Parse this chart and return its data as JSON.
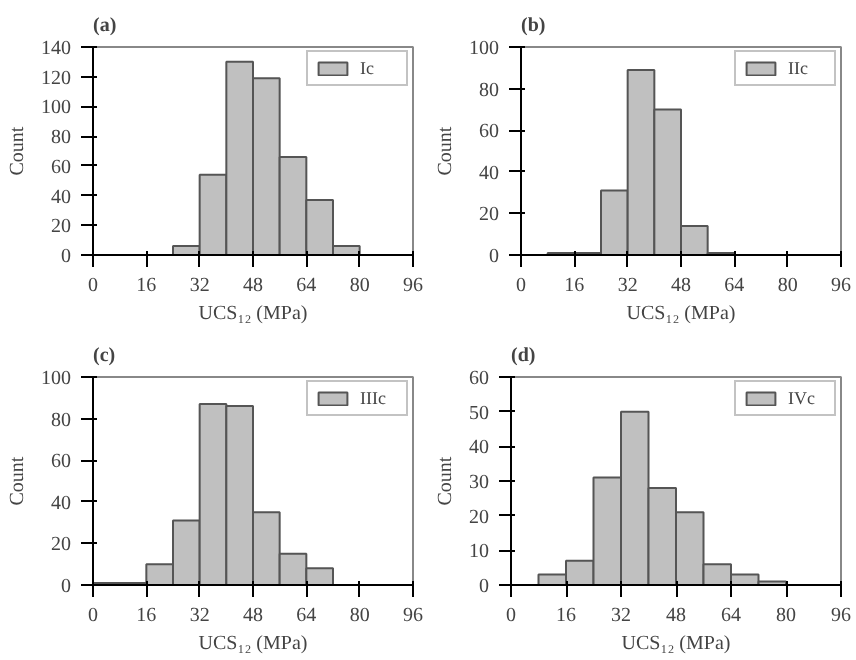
{
  "chart_data": [
    {
      "type": "histogram",
      "title": "(a)",
      "xlabel": "UCS₁₂ (MPa)",
      "ylabel": "Count",
      "bins": [
        24,
        32,
        40,
        48,
        56,
        64,
        72,
        80
      ],
      "series": [
        {
          "name": "Ic",
          "color": "#c0c0c0",
          "values": [
            6,
            54,
            130,
            119,
            66,
            37,
            6
          ]
        }
      ],
      "xlim": [
        0,
        96
      ],
      "xticks": [
        0,
        16,
        32,
        48,
        64,
        80,
        96
      ],
      "ylim": [
        0,
        140
      ],
      "yticks": [
        0,
        20,
        40,
        60,
        80,
        100,
        120,
        140
      ],
      "legend": "top right"
    },
    {
      "type": "histogram",
      "title": "(b)",
      "xlabel": "UCS₁₂ (MPa)",
      "ylabel": "Count",
      "bins": [
        8,
        16,
        24,
        32,
        40,
        48,
        56,
        64
      ],
      "series": [
        {
          "name": "IIc",
          "color": "#c0c0c0",
          "values": [
            1,
            1,
            31,
            89,
            70,
            14,
            1
          ]
        }
      ],
      "xlim": [
        0,
        96
      ],
      "xticks": [
        0,
        16,
        32,
        48,
        64,
        80,
        96
      ],
      "ylim": [
        0,
        100
      ],
      "yticks": [
        0,
        20,
        40,
        60,
        80,
        100
      ],
      "legend": "top right"
    },
    {
      "type": "histogram",
      "title": "(c)",
      "xlabel": "UCS₁₂ (MPa)",
      "ylabel": "Count",
      "bins": [
        0,
        8,
        16,
        24,
        32,
        40,
        48,
        56,
        64,
        72
      ],
      "series": [
        {
          "name": "IIIc",
          "color": "#c0c0c0",
          "values": [
            1,
            1,
            10,
            31,
            87,
            86,
            35,
            15,
            8
          ]
        }
      ],
      "xlim": [
        0,
        96
      ],
      "xticks": [
        0,
        16,
        32,
        48,
        64,
        80,
        96
      ],
      "ylim": [
        0,
        100
      ],
      "yticks": [
        0,
        20,
        40,
        60,
        80,
        100
      ],
      "legend": "top right"
    },
    {
      "type": "histogram",
      "title": "(d)",
      "xlabel": "UCS₁₂ (MPa)",
      "ylabel": "Count",
      "bins": [
        8,
        16,
        24,
        32,
        40,
        48,
        56,
        64,
        72,
        80
      ],
      "series": [
        {
          "name": "IVc",
          "color": "#c0c0c0",
          "values": [
            3,
            7,
            31,
            50,
            28,
            21,
            6,
            3,
            1
          ]
        }
      ],
      "xlim": [
        0,
        96
      ],
      "xticks": [
        0,
        16,
        32,
        48,
        64,
        80,
        96
      ],
      "ylim": [
        0,
        60
      ],
      "yticks": [
        0,
        10,
        20,
        30,
        40,
        50,
        60
      ],
      "legend": "top right"
    }
  ]
}
